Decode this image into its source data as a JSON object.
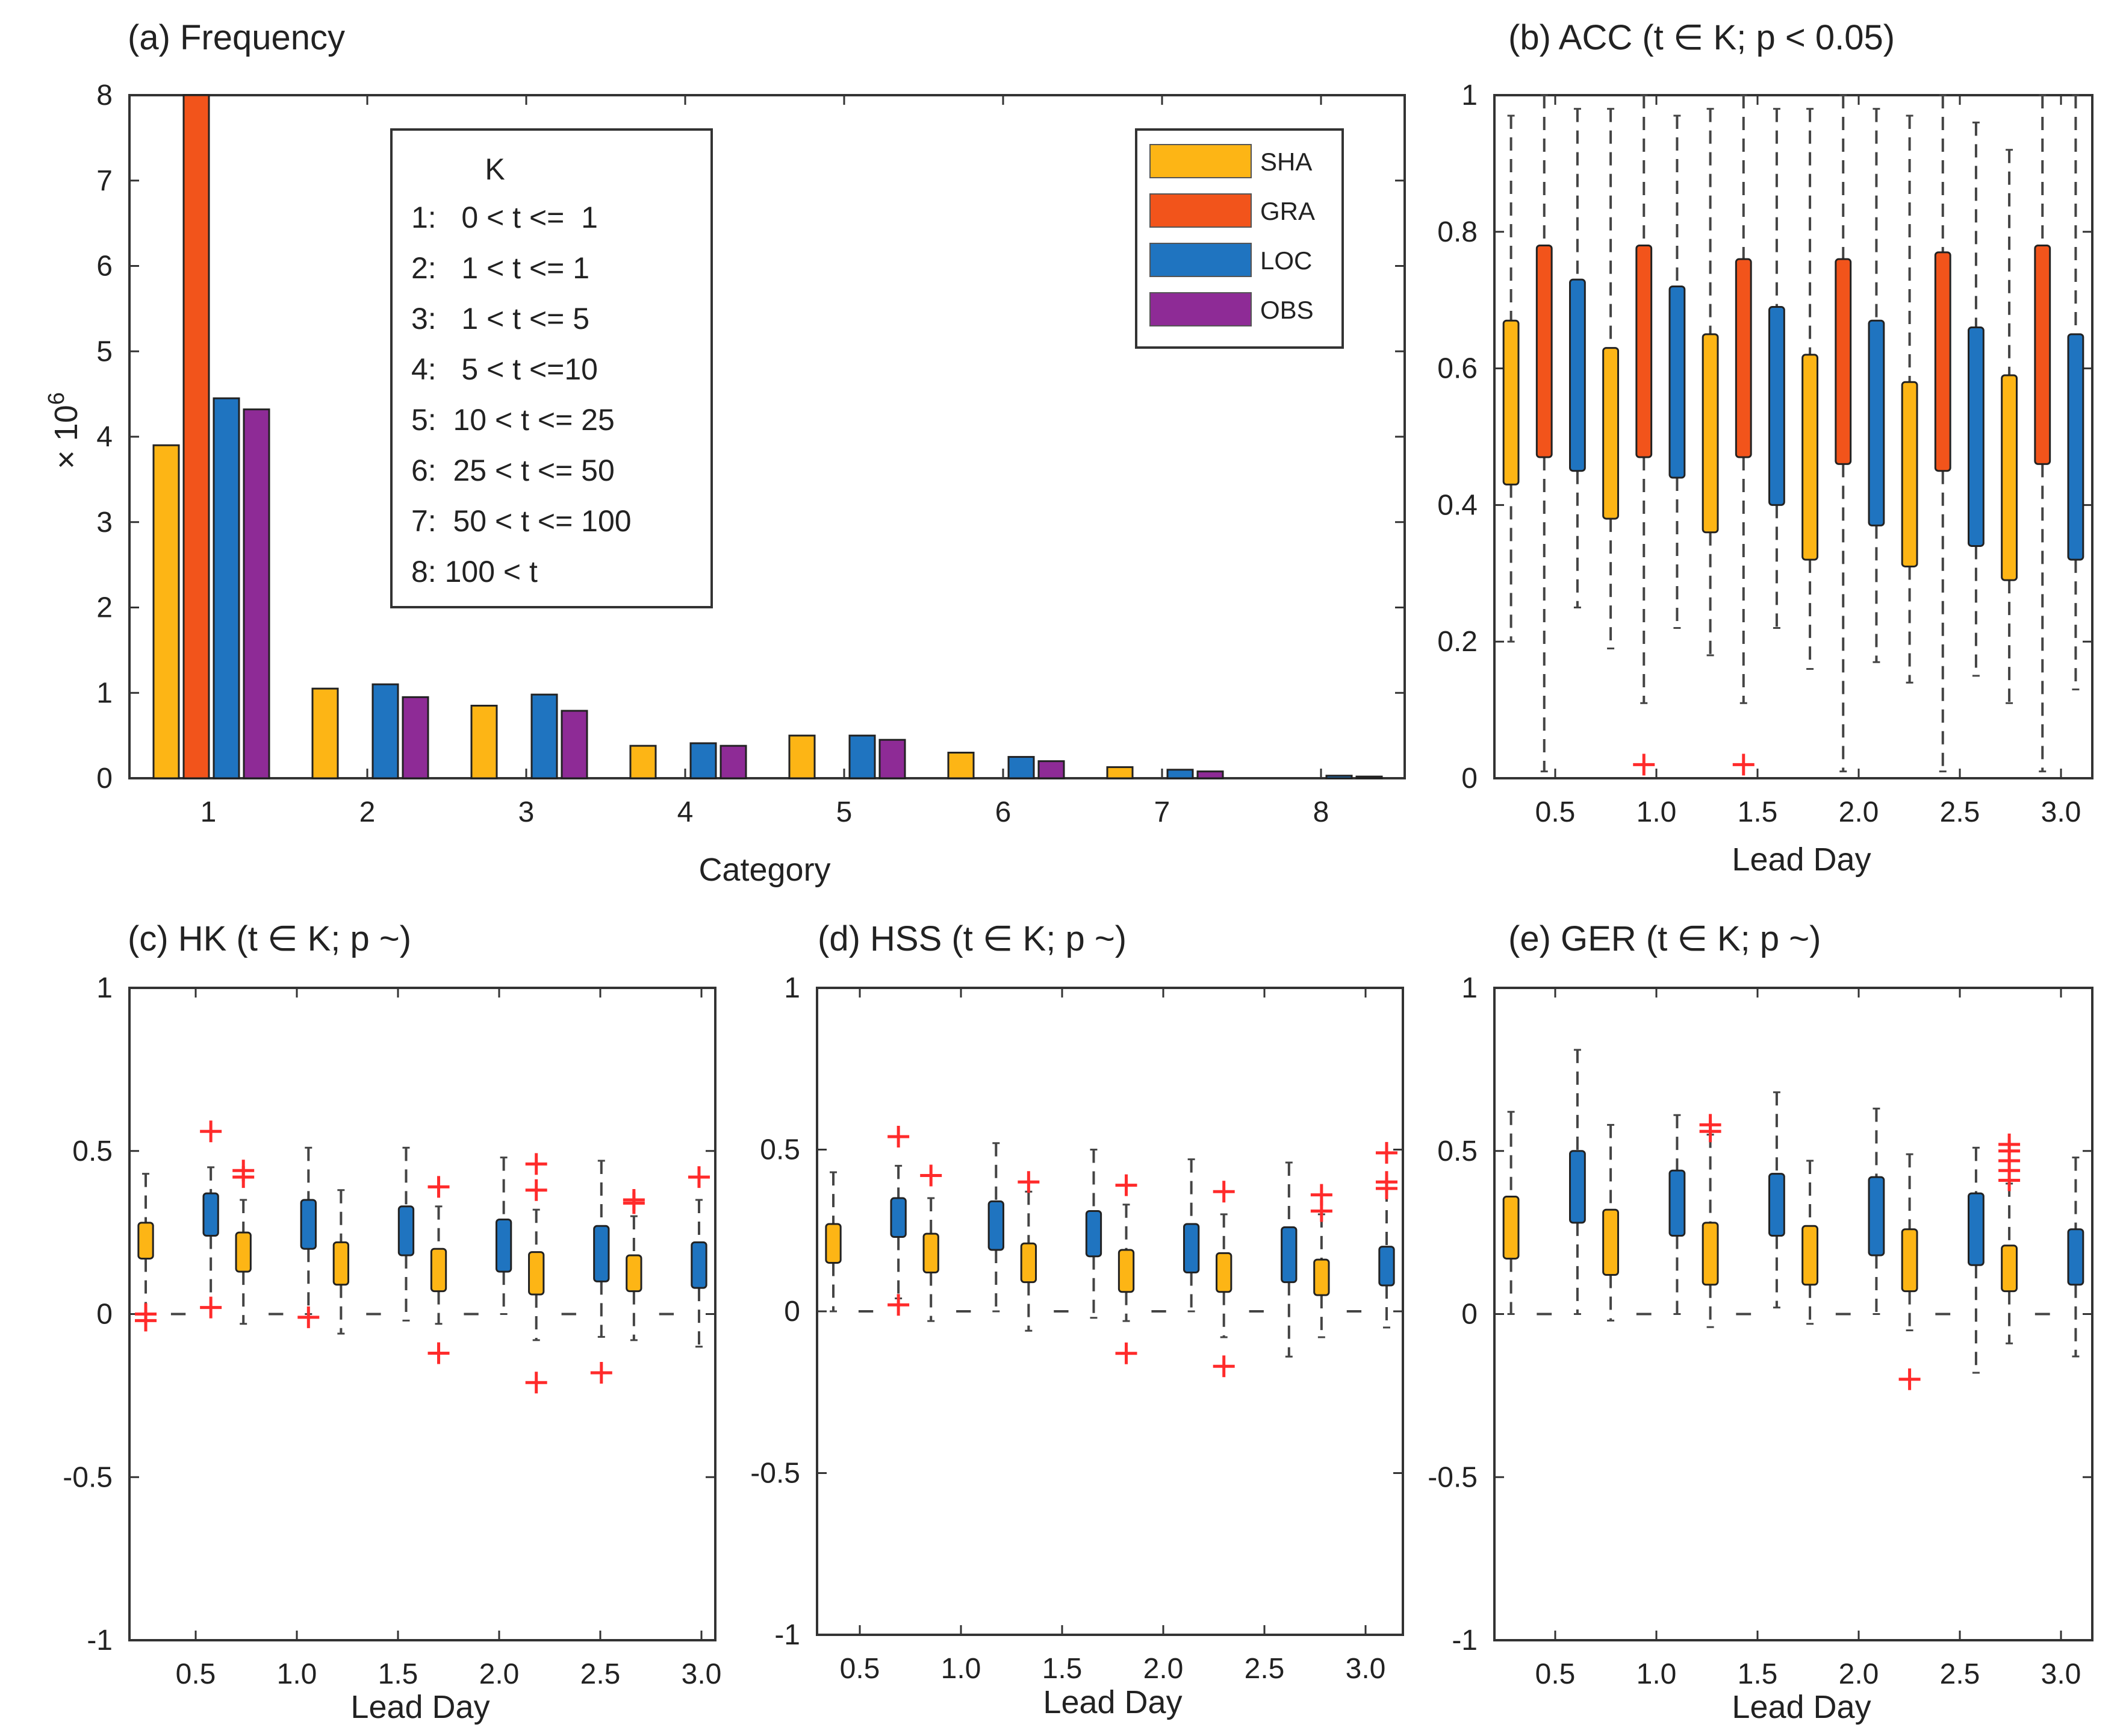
{
  "colors": {
    "SHA": "#FDB515",
    "GRA": "#F2541B",
    "LOC": "#1F74C0",
    "OBS": "#8E2B96",
    "outlier": "#FF2B2B",
    "whisker": "#444444",
    "axis": "#333333"
  },
  "chart_data": [
    {
      "id": "a",
      "type": "bar",
      "title": "(a) Frequency",
      "xlabel": "Category",
      "ylabel": "× 10",
      "ylabel_exponent": "6",
      "ylim": [
        0,
        8
      ],
      "yticks": [
        "0",
        "1",
        "2",
        "3",
        "4",
        "5",
        "6",
        "7",
        "8"
      ],
      "categories": [
        "1",
        "2",
        "3",
        "4",
        "5",
        "6",
        "7",
        "8"
      ],
      "series": [
        {
          "name": "SHA",
          "values": [
            3.9,
            1.05,
            0.85,
            0.38,
            0.5,
            0.3,
            0.13,
            0.0
          ]
        },
        {
          "name": "GRA",
          "values": [
            8.0,
            0,
            0,
            0,
            0,
            0,
            0,
            0
          ]
        },
        {
          "name": "LOC",
          "values": [
            4.45,
            1.1,
            0.98,
            0.41,
            0.5,
            0.25,
            0.1,
            0.03
          ]
        },
        {
          "name": "OBS",
          "values": [
            4.32,
            0.95,
            0.79,
            0.38,
            0.45,
            0.2,
            0.08,
            0.02
          ]
        }
      ],
      "legend": [
        "SHA",
        "GRA",
        "LOC",
        "OBS"
      ],
      "k_table": {
        "title": "K",
        "rows": [
          "1:   0 < t <=  1",
          "2:   1 < t <= 1",
          "3:   1 < t <= 5",
          "4:   5 < t <=10",
          "5:  10 < t <= 25",
          "6:  25 < t <= 50",
          "7:  50 < t <= 100",
          "8: 100 < t"
        ]
      }
    },
    {
      "id": "b",
      "type": "box",
      "title": "(b) ACC (t ∈ K; p < 0.05)",
      "xlabel": "Lead Day",
      "ylim": [
        0,
        1
      ],
      "yticks": [
        "0",
        "0.2",
        "0.4",
        "0.6",
        "0.8",
        "1"
      ],
      "xticks": [
        "0.5",
        "1.0",
        "1.5",
        "2.0",
        "2.5",
        "3.0"
      ],
      "series_order": [
        "SHA",
        "GRA",
        "LOC"
      ],
      "groups": [
        {
          "SHA": {
            "min": 0.2,
            "q1": 0.43,
            "q3": 0.67,
            "max": 0.97
          },
          "GRA": {
            "min": 0.01,
            "q1": 0.47,
            "q3": 0.78,
            "max": 1.0
          },
          "LOC": {
            "min": 0.25,
            "q1": 0.45,
            "q3": 0.73,
            "max": 0.98
          }
        },
        {
          "SHA": {
            "min": 0.19,
            "q1": 0.38,
            "q3": 0.63,
            "max": 0.98
          },
          "GRA": {
            "min": 0.11,
            "q1": 0.47,
            "q3": 0.78,
            "max": 1.0
          },
          "LOC": {
            "min": 0.22,
            "q1": 0.44,
            "q3": 0.72,
            "max": 0.97
          }
        },
        {
          "SHA": {
            "min": 0.18,
            "q1": 0.36,
            "q3": 0.65,
            "max": 0.98
          },
          "GRA": {
            "min": 0.11,
            "q1": 0.47,
            "q3": 0.76,
            "max": 1.0
          },
          "LOC": {
            "min": 0.22,
            "q1": 0.4,
            "q3": 0.69,
            "max": 0.98
          }
        },
        {
          "SHA": {
            "min": 0.16,
            "q1": 0.32,
            "q3": 0.62,
            "max": 0.98
          },
          "GRA": {
            "min": 0.01,
            "q1": 0.46,
            "q3": 0.76,
            "max": 1.0
          },
          "LOC": {
            "min": 0.17,
            "q1": 0.37,
            "q3": 0.67,
            "max": 0.98
          }
        },
        {
          "SHA": {
            "min": 0.14,
            "q1": 0.31,
            "q3": 0.58,
            "max": 0.97
          },
          "GRA": {
            "min": 0.01,
            "q1": 0.45,
            "q3": 0.77,
            "max": 1.0
          },
          "LOC": {
            "min": 0.15,
            "q1": 0.34,
            "q3": 0.66,
            "max": 0.96
          }
        },
        {
          "SHA": {
            "min": 0.11,
            "q1": 0.29,
            "q3": 0.59,
            "max": 0.92
          },
          "GRA": {
            "min": 0.01,
            "q1": 0.46,
            "q3": 0.78,
            "max": 1.0
          },
          "LOC": {
            "min": 0.13,
            "q1": 0.32,
            "q3": 0.65,
            "max": 1.0
          }
        }
      ],
      "outliers": [
        {
          "group": 1,
          "series": "GRA",
          "value": 0.02
        },
        {
          "group": 2,
          "series": "GRA",
          "value": 0.02
        }
      ]
    },
    {
      "id": "c",
      "type": "box",
      "title": "(c) HK (t ∈ K; p ~)",
      "xlabel": "Lead Day",
      "ylim": [
        -1,
        1
      ],
      "yticks": [
        "-1",
        "-0.5",
        "0",
        "0.5",
        "1"
      ],
      "xticks": [
        "0.5",
        "1.0",
        "1.5",
        "2.0",
        "2.5",
        "3.0"
      ],
      "series_order": [
        "SHA",
        "GRA",
        "LOC"
      ],
      "groups": [
        {
          "SHA": {
            "min": 0.0,
            "q1": 0.17,
            "q3": 0.28,
            "max": 0.43
          },
          "GRA": {
            "min": 0,
            "q1": 0,
            "q3": 0,
            "max": 0
          },
          "LOC": {
            "min": 0.02,
            "q1": 0.24,
            "q3": 0.37,
            "max": 0.45
          }
        },
        {
          "SHA": {
            "min": -0.03,
            "q1": 0.13,
            "q3": 0.25,
            "max": 0.35
          },
          "GRA": {
            "min": 0,
            "q1": 0,
            "q3": 0,
            "max": 0
          },
          "LOC": {
            "min": 0.0,
            "q1": 0.2,
            "q3": 0.35,
            "max": 0.51
          }
        },
        {
          "SHA": {
            "min": -0.06,
            "q1": 0.09,
            "q3": 0.22,
            "max": 0.38
          },
          "GRA": {
            "min": 0,
            "q1": 0,
            "q3": 0,
            "max": 0
          },
          "LOC": {
            "min": -0.02,
            "q1": 0.18,
            "q3": 0.33,
            "max": 0.51
          }
        },
        {
          "SHA": {
            "min": -0.03,
            "q1": 0.07,
            "q3": 0.2,
            "max": 0.33
          },
          "GRA": {
            "min": 0,
            "q1": 0,
            "q3": 0,
            "max": 0
          },
          "LOC": {
            "min": 0.0,
            "q1": 0.13,
            "q3": 0.29,
            "max": 0.48
          }
        },
        {
          "SHA": {
            "min": -0.08,
            "q1": 0.06,
            "q3": 0.19,
            "max": 0.32
          },
          "GRA": {
            "min": 0,
            "q1": 0,
            "q3": 0,
            "max": 0
          },
          "LOC": {
            "min": -0.07,
            "q1": 0.1,
            "q3": 0.27,
            "max": 0.47
          }
        },
        {
          "SHA": {
            "min": -0.08,
            "q1": 0.07,
            "q3": 0.18,
            "max": 0.3
          },
          "GRA": {
            "min": 0,
            "q1": 0,
            "q3": 0,
            "max": 0
          },
          "LOC": {
            "min": -0.1,
            "q1": 0.08,
            "q3": 0.22,
            "max": 0.35
          }
        }
      ],
      "outliers": [
        {
          "group": 0,
          "series": "SHA",
          "value": -0.02
        },
        {
          "group": 0,
          "series": "SHA",
          "value": 0.0
        },
        {
          "group": 0,
          "series": "LOC",
          "value": 0.56
        },
        {
          "group": 0,
          "series": "LOC",
          "value": 0.02
        },
        {
          "group": 1,
          "series": "SHA",
          "value": 0.44
        },
        {
          "group": 1,
          "series": "SHA",
          "value": 0.42
        },
        {
          "group": 1,
          "series": "LOC",
          "value": -0.01
        },
        {
          "group": 3,
          "series": "SHA",
          "value": 0.39
        },
        {
          "group": 3,
          "series": "SHA",
          "value": -0.12
        },
        {
          "group": 4,
          "series": "SHA",
          "value": 0.46
        },
        {
          "group": 4,
          "series": "SHA",
          "value": 0.38
        },
        {
          "group": 4,
          "series": "SHA",
          "value": -0.21
        },
        {
          "group": 4,
          "series": "LOC",
          "value": -0.18
        },
        {
          "group": 5,
          "series": "SHA",
          "value": 0.34
        },
        {
          "group": 5,
          "series": "SHA",
          "value": 0.35
        },
        {
          "group": 5,
          "series": "LOC",
          "value": 0.42
        }
      ]
    },
    {
      "id": "d",
      "type": "box",
      "title": "(d) HSS (t ∈ K; p ~)",
      "xlabel": "Lead Day",
      "ylim": [
        -1,
        1
      ],
      "yticks": [
        "-1",
        "-0.5",
        "0",
        "0.5",
        "1"
      ],
      "xticks": [
        "0.5",
        "1.0",
        "1.5",
        "2.0",
        "2.5",
        "3.0"
      ],
      "series_order": [
        "SHA",
        "GRA",
        "LOC"
      ],
      "groups": [
        {
          "SHA": {
            "min": 0.0,
            "q1": 0.15,
            "q3": 0.27,
            "max": 0.43
          },
          "GRA": {
            "min": 0,
            "q1": 0,
            "q3": 0,
            "max": 0
          },
          "LOC": {
            "min": 0.04,
            "q1": 0.23,
            "q3": 0.35,
            "max": 0.45
          }
        },
        {
          "SHA": {
            "min": -0.03,
            "q1": 0.12,
            "q3": 0.24,
            "max": 0.35
          },
          "GRA": {
            "min": 0,
            "q1": 0,
            "q3": 0,
            "max": 0
          },
          "LOC": {
            "min": 0.0,
            "q1": 0.19,
            "q3": 0.34,
            "max": 0.52
          }
        },
        {
          "SHA": {
            "min": -0.06,
            "q1": 0.09,
            "q3": 0.21,
            "max": 0.37
          },
          "GRA": {
            "min": 0,
            "q1": 0,
            "q3": 0,
            "max": 0
          },
          "LOC": {
            "min": -0.02,
            "q1": 0.17,
            "q3": 0.31,
            "max": 0.5
          }
        },
        {
          "SHA": {
            "min": -0.03,
            "q1": 0.06,
            "q3": 0.19,
            "max": 0.33
          },
          "GRA": {
            "min": 0,
            "q1": 0,
            "q3": 0,
            "max": 0
          },
          "LOC": {
            "min": 0.0,
            "q1": 0.12,
            "q3": 0.27,
            "max": 0.47
          }
        },
        {
          "SHA": {
            "min": -0.08,
            "q1": 0.06,
            "q3": 0.18,
            "max": 0.3
          },
          "GRA": {
            "min": 0,
            "q1": 0,
            "q3": 0,
            "max": 0
          },
          "LOC": {
            "min": -0.14,
            "q1": 0.09,
            "q3": 0.26,
            "max": 0.46
          }
        },
        {
          "SHA": {
            "min": -0.08,
            "q1": 0.05,
            "q3": 0.16,
            "max": 0.3
          },
          "GRA": {
            "min": 0,
            "q1": 0,
            "q3": 0,
            "max": 0
          },
          "LOC": {
            "min": -0.05,
            "q1": 0.08,
            "q3": 0.2,
            "max": 0.38
          }
        }
      ],
      "outliers": [
        {
          "group": 0,
          "series": "LOC",
          "value": 0.54
        },
        {
          "group": 0,
          "series": "LOC",
          "value": 0.02
        },
        {
          "group": 1,
          "series": "SHA",
          "value": 0.42
        },
        {
          "group": 2,
          "series": "SHA",
          "value": 0.4
        },
        {
          "group": 3,
          "series": "SHA",
          "value": 0.39
        },
        {
          "group": 3,
          "series": "SHA",
          "value": -0.13
        },
        {
          "group": 4,
          "series": "SHA",
          "value": 0.37
        },
        {
          "group": 4,
          "series": "SHA",
          "value": -0.17
        },
        {
          "group": 5,
          "series": "SHA",
          "value": 0.36
        },
        {
          "group": 5,
          "series": "SHA",
          "value": 0.31
        },
        {
          "group": 5,
          "series": "LOC",
          "value": 0.49
        },
        {
          "group": 5,
          "series": "LOC",
          "value": 0.4
        },
        {
          "group": 5,
          "series": "LOC",
          "value": 0.38
        }
      ]
    },
    {
      "id": "e",
      "type": "box",
      "title": "(e) GER (t ∈ K; p ~)",
      "xlabel": "Lead Day",
      "ylim": [
        -1,
        1
      ],
      "yticks": [
        "-1",
        "-0.5",
        "0",
        "0.5",
        "1"
      ],
      "xticks": [
        "0.5",
        "1.0",
        "1.5",
        "2.0",
        "2.5",
        "3.0"
      ],
      "series_order": [
        "SHA",
        "GRA",
        "LOC"
      ],
      "groups": [
        {
          "SHA": {
            "min": 0.0,
            "q1": 0.17,
            "q3": 0.36,
            "max": 0.62
          },
          "GRA": {
            "min": 0,
            "q1": 0,
            "q3": 0,
            "max": 0
          },
          "LOC": {
            "min": 0.0,
            "q1": 0.28,
            "q3": 0.5,
            "max": 0.81
          }
        },
        {
          "SHA": {
            "min": -0.02,
            "q1": 0.12,
            "q3": 0.32,
            "max": 0.58
          },
          "GRA": {
            "min": 0,
            "q1": 0,
            "q3": 0,
            "max": 0
          },
          "LOC": {
            "min": 0.0,
            "q1": 0.24,
            "q3": 0.44,
            "max": 0.61
          }
        },
        {
          "SHA": {
            "min": -0.04,
            "q1": 0.09,
            "q3": 0.28,
            "max": 0.55
          },
          "GRA": {
            "min": 0,
            "q1": 0,
            "q3": 0,
            "max": 0
          },
          "LOC": {
            "min": 0.02,
            "q1": 0.24,
            "q3": 0.43,
            "max": 0.68
          }
        },
        {
          "SHA": {
            "min": -0.03,
            "q1": 0.09,
            "q3": 0.27,
            "max": 0.47
          },
          "GRA": {
            "min": 0,
            "q1": 0,
            "q3": 0,
            "max": 0
          },
          "LOC": {
            "min": 0.0,
            "q1": 0.18,
            "q3": 0.42,
            "max": 0.63
          }
        },
        {
          "SHA": {
            "min": -0.05,
            "q1": 0.07,
            "q3": 0.26,
            "max": 0.49
          },
          "GRA": {
            "min": 0,
            "q1": 0,
            "q3": 0,
            "max": 0
          },
          "LOC": {
            "min": -0.18,
            "q1": 0.15,
            "q3": 0.37,
            "max": 0.51
          }
        },
        {
          "SHA": {
            "min": -0.09,
            "q1": 0.07,
            "q3": 0.21,
            "max": 0.4
          },
          "GRA": {
            "min": 0,
            "q1": 0,
            "q3": 0,
            "max": 0
          },
          "LOC": {
            "min": -0.13,
            "q1": 0.09,
            "q3": 0.26,
            "max": 0.48
          }
        }
      ],
      "outliers": [
        {
          "group": 2,
          "series": "SHA",
          "value": 0.58
        },
        {
          "group": 2,
          "series": "SHA",
          "value": 0.56
        },
        {
          "group": 4,
          "series": "SHA",
          "value": -0.2
        },
        {
          "group": 5,
          "series": "SHA",
          "value": 0.52
        },
        {
          "group": 5,
          "series": "SHA",
          "value": 0.5
        },
        {
          "group": 5,
          "series": "SHA",
          "value": 0.47
        },
        {
          "group": 5,
          "series": "SHA",
          "value": 0.44
        },
        {
          "group": 5,
          "series": "SHA",
          "value": 0.41
        }
      ]
    }
  ]
}
